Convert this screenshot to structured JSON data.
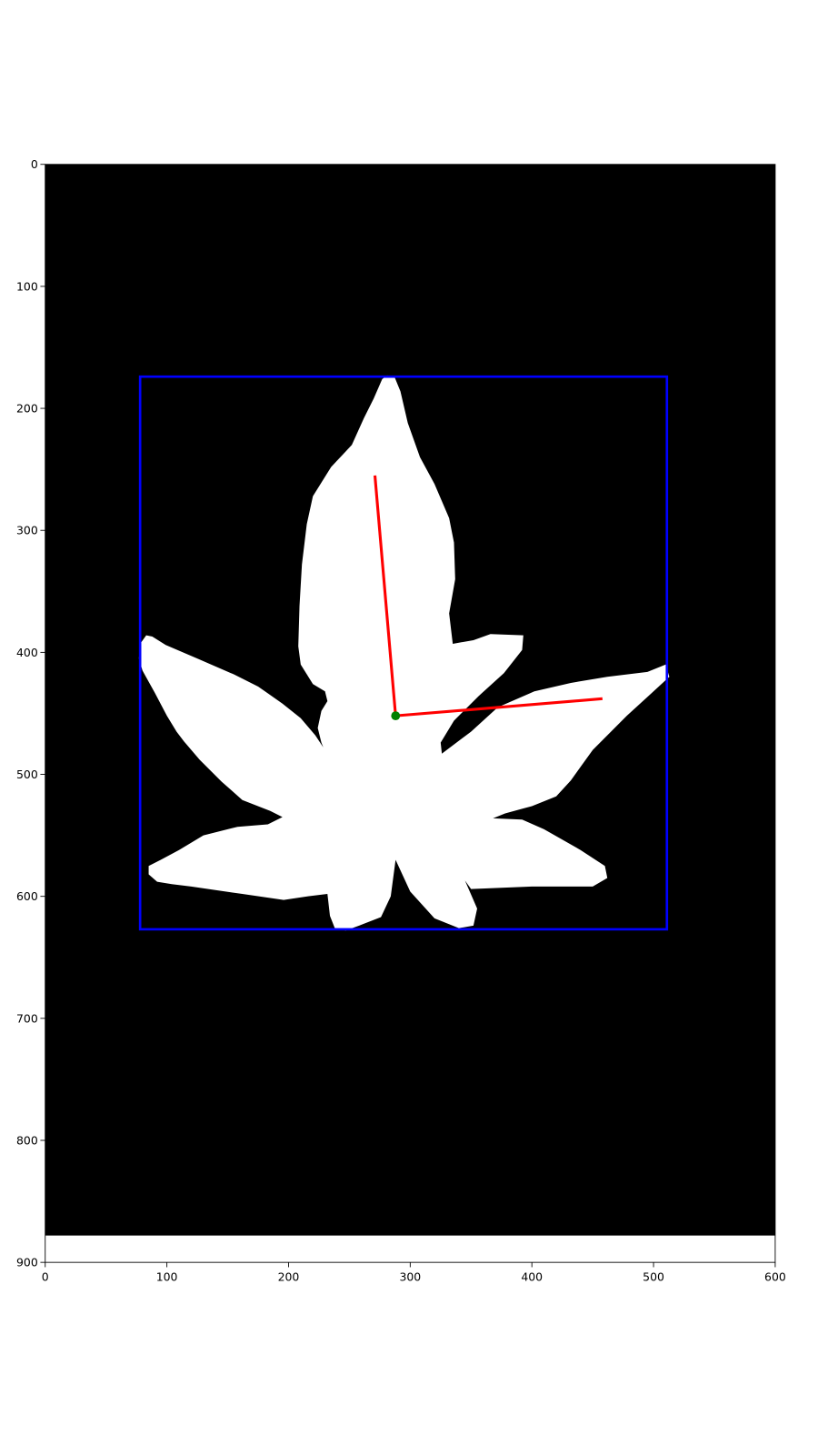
{
  "chart_data": {
    "type": "scatter",
    "title": "",
    "xlabel": "",
    "ylabel": "",
    "xlim": [
      0,
      600
    ],
    "ylim": [
      900,
      0
    ],
    "y_inverted": true,
    "grid": false,
    "legend": "none",
    "x_ticks": [
      0,
      100,
      200,
      300,
      400,
      500,
      600
    ],
    "y_ticks": [
      0,
      100,
      200,
      300,
      400,
      500,
      600,
      700,
      800,
      900
    ],
    "x_tick_labels": [
      "0",
      "100",
      "200",
      "300",
      "400",
      "500",
      "600"
    ],
    "y_tick_labels": [
      "0",
      "100",
      "200",
      "300",
      "400",
      "500",
      "600",
      "700",
      "800",
      "900"
    ],
    "image": {
      "extent_x": [
        0,
        600
      ],
      "extent_y": [
        0,
        878
      ],
      "background": "#000000",
      "foreground": "#ffffff",
      "leaf_outline": [
        [
          277,
          176
        ],
        [
          281,
          173
        ],
        [
          287,
          174
        ],
        [
          292,
          186
        ],
        [
          298,
          212
        ],
        [
          308,
          240
        ],
        [
          320,
          262
        ],
        [
          332,
          290
        ],
        [
          336,
          310
        ],
        [
          337,
          340
        ],
        [
          332,
          368
        ],
        [
          335,
          393
        ],
        [
          352,
          390
        ],
        [
          366,
          385
        ],
        [
          393,
          386
        ],
        [
          392,
          398
        ],
        [
          377,
          417
        ],
        [
          356,
          436
        ],
        [
          336,
          456
        ],
        [
          325,
          474
        ],
        [
          326,
          483
        ],
        [
          350,
          465
        ],
        [
          372,
          445
        ],
        [
          402,
          432
        ],
        [
          432,
          425
        ],
        [
          462,
          420
        ],
        [
          495,
          416
        ],
        [
          510,
          410
        ],
        [
          513,
          420
        ],
        [
          500,
          432
        ],
        [
          478,
          452
        ],
        [
          450,
          480
        ],
        [
          432,
          505
        ],
        [
          420,
          518
        ],
        [
          400,
          526
        ],
        [
          378,
          532
        ],
        [
          368,
          536
        ],
        [
          392,
          537
        ],
        [
          410,
          545
        ],
        [
          440,
          562
        ],
        [
          460,
          575
        ],
        [
          462,
          585
        ],
        [
          450,
          592
        ],
        [
          400,
          592
        ],
        [
          350,
          594
        ],
        [
          345,
          587
        ],
        [
          355,
          610
        ],
        [
          352,
          624
        ],
        [
          340,
          626
        ],
        [
          320,
          618
        ],
        [
          300,
          596
        ],
        [
          288,
          570
        ],
        [
          284,
          600
        ],
        [
          276,
          617
        ],
        [
          258,
          624
        ],
        [
          247,
          628
        ],
        [
          238,
          626
        ],
        [
          234,
          616
        ],
        [
          232,
          598
        ],
        [
          216,
          600
        ],
        [
          196,
          603
        ],
        [
          162,
          598
        ],
        [
          120,
          592
        ],
        [
          104,
          590
        ],
        [
          92,
          588
        ],
        [
          85,
          582
        ],
        [
          85,
          575
        ],
        [
          95,
          570
        ],
        [
          110,
          562
        ],
        [
          130,
          550
        ],
        [
          158,
          543
        ],
        [
          183,
          541
        ],
        [
          195,
          535
        ],
        [
          185,
          530
        ],
        [
          162,
          521
        ],
        [
          145,
          506
        ],
        [
          127,
          488
        ],
        [
          114,
          473
        ],
        [
          108,
          465
        ],
        [
          100,
          452
        ],
        [
          90,
          433
        ],
        [
          80,
          415
        ],
        [
          77,
          405
        ],
        [
          78,
          393
        ],
        [
          83,
          386
        ],
        [
          88,
          387
        ],
        [
          99,
          394
        ],
        [
          125,
          405
        ],
        [
          155,
          418
        ],
        [
          175,
          428
        ],
        [
          195,
          442
        ],
        [
          210,
          454
        ],
        [
          222,
          468
        ],
        [
          230,
          480
        ],
        [
          231,
          484
        ],
        [
          227,
          474
        ],
        [
          224,
          462
        ],
        [
          227,
          448
        ],
        [
          232,
          440
        ],
        [
          230,
          432
        ],
        [
          220,
          426
        ],
        [
          210,
          410
        ],
        [
          208,
          395
        ],
        [
          209,
          362
        ],
        [
          211,
          328
        ],
        [
          215,
          295
        ],
        [
          220,
          272
        ],
        [
          235,
          248
        ],
        [
          252,
          230
        ],
        [
          262,
          208
        ],
        [
          270,
          192
        ]
      ]
    },
    "bounding_box": {
      "x": [
        78,
        511
      ],
      "y": [
        174,
        627
      ],
      "color": "#0000ff"
    },
    "center_point": {
      "x": 288,
      "y": 452,
      "color": "#008000"
    },
    "axis_lines": [
      {
        "from": [
          288,
          452
        ],
        "to": [
          271,
          255
        ],
        "color": "#ff0000"
      },
      {
        "from": [
          288,
          452
        ],
        "to": [
          458,
          438
        ],
        "color": "#ff0000"
      }
    ]
  }
}
